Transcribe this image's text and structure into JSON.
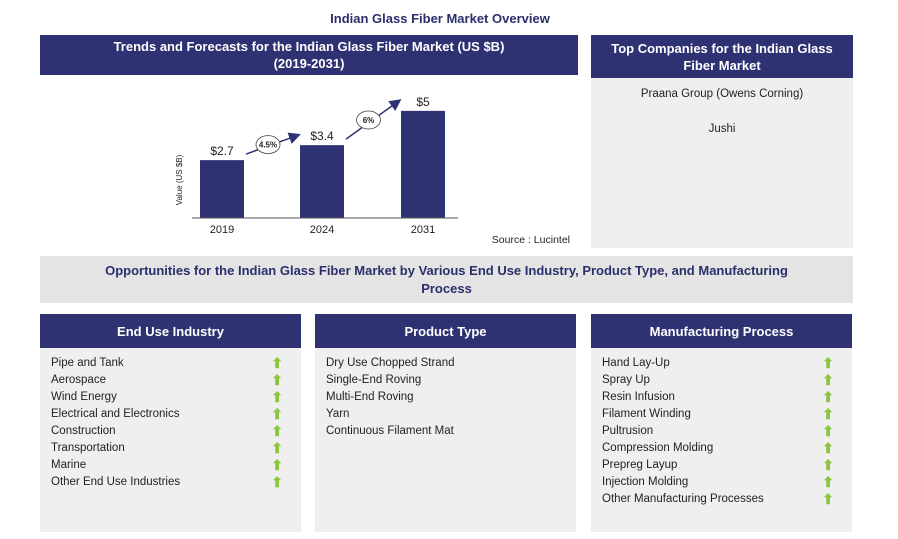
{
  "title": "Indian Glass Fiber Market Overview",
  "chart_header": "Trends and Forecasts for the Indian Glass Fiber Market (US $B)",
  "chart_header_sub": "(2019-2031)",
  "companies": {
    "header": "Top Companies for the Indian Glass Fiber Market",
    "items": [
      "Praana Group (Owens Corning)",
      "Jushi"
    ]
  },
  "chart_data": {
    "type": "bar",
    "categories": [
      "2019",
      "2024",
      "2031"
    ],
    "values": [
      2.7,
      3.4,
      5
    ],
    "data_labels": [
      "$2.7",
      "$3.4",
      "$5"
    ],
    "ylabel": "Value (US $B)",
    "ylim": [
      0,
      5.6
    ],
    "grid": false,
    "bar_color": "#2f3272",
    "cagr_annotations": [
      "4.5%",
      "6%"
    ],
    "source": "Source : Lucintel"
  },
  "opportunities_banner": "Opportunities for the Indian Glass Fiber Market by Various End Use Industry, Product Type, and Manufacturing Process",
  "columns": [
    {
      "header": "End Use Industry",
      "items": [
        "Pipe and Tank",
        "Aerospace",
        "Wind Energy",
        "Electrical and Electronics",
        "Construction",
        "Transportation",
        "Marine",
        "Other End Use Industries"
      ],
      "arrows": true
    },
    {
      "header": "Product Type",
      "items": [
        "Dry Use Chopped Strand",
        "Single-End Roving",
        "Multi-End Roving",
        "Yarn",
        "Continuous Filament Mat"
      ],
      "arrows": false
    },
    {
      "header": "Manufacturing Process",
      "items": [
        "Hand Lay-Up",
        "Spray Up",
        "Resin Infusion",
        "Filament Winding",
        "Pultrusion",
        "Compression Molding",
        "Prepreg Layup",
        "Injection Molding",
        "Other Manufacturing Processes"
      ],
      "arrows": true
    }
  ],
  "arrow_icon": "up-arrow-icon",
  "arrow_glyph": "⬆",
  "colors": {
    "navy": "#2f3272",
    "arrow_green": "#8cc63f",
    "panel_grey": "#efefef"
  }
}
